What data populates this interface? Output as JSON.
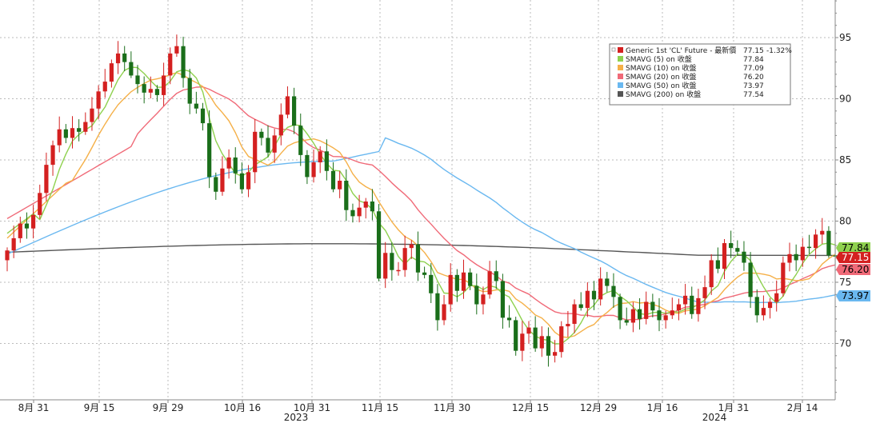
{
  "chart_data": {
    "type": "candlestick",
    "y_axis": {
      "ticks": [
        70,
        75,
        80,
        85,
        90,
        95
      ],
      "range": [
        66,
        98
      ],
      "position": "right"
    },
    "x_axis": {
      "tick_labels": [
        "8月 31",
        "9月 15",
        "9月 29",
        "10月 16",
        "10月 31",
        "11月 15",
        "11月 30",
        "12月 15",
        "12月 29",
        "1月 16",
        "1月 31",
        "2月 14"
      ],
      "year_labels": [
        "2023",
        "2024"
      ]
    },
    "grid": true,
    "legend": {
      "placement": "top-right",
      "rows": [
        {
          "label": "Generic 1st 'CL' Future - 最新價",
          "value": "77.15",
          "change": "-1.32%",
          "color": "#d42020"
        },
        {
          "label": "SMAVG (5)  on 收盤",
          "value": "77.84",
          "color": "#8fd14f"
        },
        {
          "label": "SMAVG (10)  on 收盤",
          "value": "77.09",
          "color": "#f5b048"
        },
        {
          "label": "SMAVG (20)  on 收盤",
          "value": "76.20",
          "color": "#f06a78"
        },
        {
          "label": "SMAVG (50)  on 收盤",
          "value": "73.97",
          "color": "#6ab8f0"
        },
        {
          "label": "SMAVG (200)  on 收盤",
          "value": "77.54",
          "color": "#555555"
        }
      ]
    },
    "value_tags": [
      {
        "text": "77.84",
        "value": 77.84,
        "color": "#8fd14f",
        "text_color": "#000000"
      },
      {
        "text": "77.15",
        "value": 77.15,
        "color": "#d42020",
        "text_color": "#ffffff"
      },
      {
        "text": "76.20",
        "value": 76.2,
        "color": "#f06a78",
        "text_color": "#000000"
      },
      {
        "text": "73.97",
        "value": 73.97,
        "color": "#6ab8f0",
        "text_color": "#000000"
      }
    ],
    "ohlc_close": [
      77.6,
      78.6,
      79.8,
      79.4,
      80.5,
      82.3,
      84.6,
      86.2,
      87.5,
      86.8,
      87.6,
      87.3,
      88.1,
      89.2,
      90.6,
      91.4,
      92.9,
      93.7,
      93.0,
      91.9,
      91.2,
      90.5,
      90.8,
      90.3,
      91.9,
      93.7,
      94.3,
      91.7,
      89.6,
      89.2,
      88.0,
      83.6,
      82.4,
      84.3,
      85.2,
      83.9,
      82.6,
      84.0,
      87.3,
      86.8,
      85.6,
      87.0,
      88.7,
      90.2,
      87.8,
      85.4,
      83.6,
      84.8,
      85.7,
      84.1,
      82.6,
      83.3,
      80.9,
      80.4,
      81.1,
      81.6,
      80.8,
      75.3,
      77.4,
      76.0,
      76.0,
      77.8,
      78.1,
      75.8,
      75.6,
      74.1,
      71.9,
      73.2,
      75.6,
      74.3,
      75.8,
      74.7,
      73.2,
      74.0,
      75.9,
      75.1,
      72.1,
      71.9,
      69.4,
      70.8,
      71.3,
      69.6,
      70.6,
      69.0,
      69.3,
      71.4,
      71.6,
      73.2,
      72.9,
      74.3,
      73.6,
      75.3,
      74.7,
      73.8,
      71.9,
      71.7,
      72.8,
      72.0,
      73.4,
      72.7,
      71.9,
      72.3,
      72.7,
      73.2,
      73.9,
      72.4,
      73.7,
      74.6,
      76.8,
      76.1,
      78.2,
      77.8,
      77.5,
      76.6,
      73.8,
      72.3,
      72.9,
      73.4,
      74.1,
      76.6,
      77.3,
      76.8,
      77.9,
      77.8,
      78.9,
      79.2,
      77.2,
      77.15
    ]
  }
}
